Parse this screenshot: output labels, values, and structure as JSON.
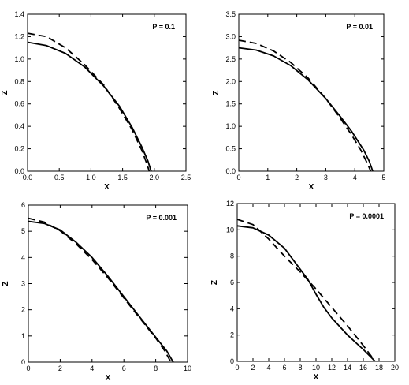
{
  "colors": {
    "line": "#000000",
    "background": "#ffffff"
  },
  "chart_data": [
    {
      "type": "line",
      "annotation": "P = 0.1",
      "xlabel": "X",
      "ylabel": "Z",
      "xlim": [
        0,
        2.5
      ],
      "ylim": [
        0,
        1.4
      ],
      "xticks": [
        "0.0",
        "0.5",
        "1.0",
        "1.5",
        "2.0",
        "2.5"
      ],
      "yticks": [
        "0.0",
        "0.2",
        "0.4",
        "0.6",
        "0.8",
        "1.0",
        "1.2",
        "1.4"
      ],
      "series": [
        {
          "style": "solid",
          "x": [
            0,
            0.3,
            0.6,
            0.9,
            1.2,
            1.45,
            1.65,
            1.8,
            1.9,
            1.95
          ],
          "y": [
            1.15,
            1.12,
            1.05,
            0.93,
            0.76,
            0.58,
            0.39,
            0.22,
            0.09,
            0.0
          ]
        },
        {
          "style": "dashed",
          "x": [
            0,
            0.3,
            0.6,
            0.9,
            1.2,
            1.45,
            1.65,
            1.8,
            1.88,
            1.92
          ],
          "y": [
            1.23,
            1.2,
            1.1,
            0.95,
            0.77,
            0.56,
            0.37,
            0.19,
            0.07,
            0.0
          ]
        }
      ]
    },
    {
      "type": "line",
      "annotation": "P = 0.01",
      "xlabel": "X",
      "ylabel": "Z",
      "xlim": [
        0,
        5
      ],
      "ylim": [
        0,
        3.5
      ],
      "xticks": [
        "0",
        "1",
        "2",
        "3",
        "4",
        "5"
      ],
      "yticks": [
        "0.0",
        "0.5",
        "1.0",
        "1.5",
        "2.0",
        "2.5",
        "3.0",
        "3.5"
      ],
      "series": [
        {
          "style": "solid",
          "x": [
            0,
            0.6,
            1.2,
            1.8,
            2.4,
            3.0,
            3.5,
            3.9,
            4.3,
            4.5,
            4.62
          ],
          "y": [
            2.75,
            2.7,
            2.57,
            2.35,
            2.03,
            1.62,
            1.22,
            0.88,
            0.48,
            0.22,
            0.0
          ]
        },
        {
          "style": "dashed",
          "x": [
            0,
            0.6,
            1.2,
            1.8,
            2.4,
            3.0,
            3.5,
            3.9,
            4.2,
            4.45,
            4.55
          ],
          "y": [
            2.92,
            2.85,
            2.68,
            2.42,
            2.07,
            1.62,
            1.18,
            0.8,
            0.48,
            0.15,
            0.0
          ]
        }
      ]
    },
    {
      "type": "line",
      "annotation": "P = 0.001",
      "xlabel": "X",
      "ylabel": "Z",
      "xlim": [
        0,
        10
      ],
      "ylim": [
        0,
        6
      ],
      "xticks": [
        "0",
        "2",
        "4",
        "6",
        "8",
        "10"
      ],
      "yticks": [
        "0",
        "1",
        "2",
        "3",
        "4",
        "5",
        "6"
      ],
      "series": [
        {
          "style": "solid",
          "x": [
            0,
            1,
            2,
            3,
            4,
            5,
            6,
            7,
            8,
            8.7,
            9.1
          ],
          "y": [
            5.38,
            5.3,
            5.05,
            4.58,
            4.0,
            3.28,
            2.5,
            1.72,
            0.95,
            0.42,
            0.0
          ]
        },
        {
          "style": "dashed",
          "x": [
            0,
            1,
            2,
            3,
            4,
            5,
            6,
            7,
            8,
            8.6,
            8.95
          ],
          "y": [
            5.5,
            5.35,
            5.02,
            4.52,
            3.92,
            3.22,
            2.45,
            1.68,
            0.92,
            0.4,
            0.0
          ]
        }
      ]
    },
    {
      "type": "line",
      "annotation": "P = 0.0001",
      "xlabel": "X",
      "ylabel": "Z",
      "xlim": [
        0,
        20
      ],
      "ylim": [
        0,
        12
      ],
      "xticks": [
        "0",
        "2",
        "4",
        "6",
        "8",
        "10",
        "12",
        "14",
        "16",
        "18",
        "20"
      ],
      "yticks": [
        "0",
        "2",
        "4",
        "6",
        "8",
        "10",
        "12"
      ],
      "series": [
        {
          "style": "solid",
          "x": [
            0,
            2,
            4,
            6,
            8,
            9,
            10,
            11,
            12,
            14,
            16,
            17,
            17.5
          ],
          "y": [
            10.3,
            10.15,
            9.6,
            8.6,
            7.0,
            6.2,
            5.1,
            4.1,
            3.3,
            2.0,
            0.9,
            0.3,
            0.0
          ]
        },
        {
          "style": "dashed",
          "x": [
            0,
            2,
            4,
            6,
            8,
            10,
            12,
            14,
            16,
            17,
            17.4
          ],
          "y": [
            10.8,
            10.4,
            9.3,
            8.0,
            6.8,
            5.5,
            4.1,
            2.7,
            1.2,
            0.4,
            0.0
          ]
        }
      ]
    }
  ]
}
